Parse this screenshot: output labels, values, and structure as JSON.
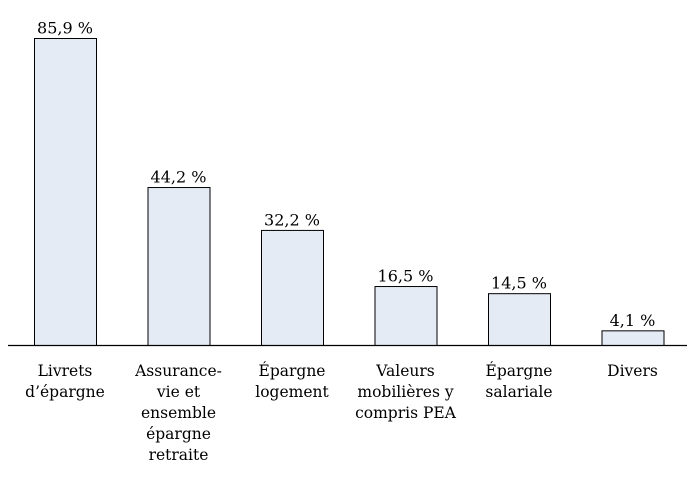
{
  "chart_data": {
    "type": "bar",
    "categories": [
      [
        "Livrets",
        "d’épargne"
      ],
      [
        "Assurance-",
        "vie et",
        "ensemble",
        "épargne",
        "retraite"
      ],
      [
        "Épargne",
        "logement"
      ],
      [
        "Valeurs",
        "mobilières y",
        "compris PEA"
      ],
      [
        "Épargne",
        "salariale"
      ],
      [
        "Divers"
      ]
    ],
    "values": [
      85.9,
      44.2,
      32.2,
      16.5,
      14.5,
      4.1
    ],
    "data_labels": [
      "85,9 %",
      "44,2 %",
      "32,2 %",
      "16,5 %",
      "14,5 %",
      "4,1 %"
    ],
    "title": "",
    "xlabel": "",
    "ylabel": "",
    "ylim": [
      0,
      86
    ],
    "grid": false,
    "legend": "none",
    "colors": {
      "bar_fill": "#e4ebf5",
      "bar_stroke": "#000000"
    }
  }
}
